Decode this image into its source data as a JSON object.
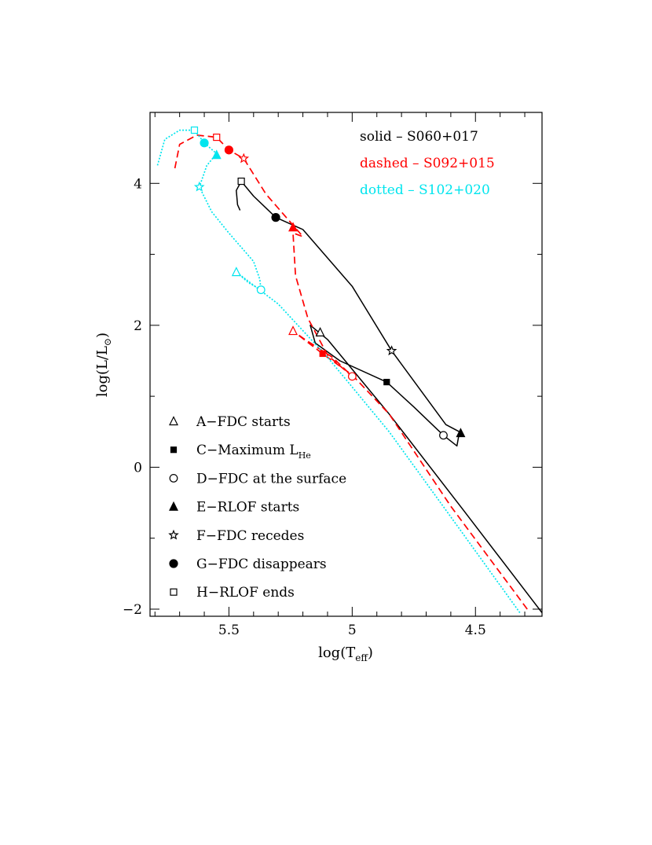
{
  "chart_data": {
    "type": "line",
    "title": "",
    "xlabel": {
      "main": "log(T",
      "sub": "eff",
      "close": ")"
    },
    "ylabel": {
      "main": "log(L/L",
      "sub": "⊙",
      "close": ")"
    },
    "xlim": [
      5.82,
      4.23
    ],
    "ylim": [
      -2.1,
      5.0
    ],
    "x_ticks": [
      {
        "value": 5.5,
        "label": "5.5"
      },
      {
        "value": 5.0,
        "label": "5"
      },
      {
        "value": 4.5,
        "label": "4.5"
      }
    ],
    "y_ticks": [
      {
        "value": 4,
        "label": "4"
      },
      {
        "value": 2,
        "label": "2"
      },
      {
        "value": 0,
        "label": "0"
      },
      {
        "value": -2,
        "label": "−2"
      }
    ],
    "x_minor_step": 0.1,
    "y_minor_step": 1.0,
    "series_legend": [
      {
        "style": "solid",
        "name": "S060+017",
        "text": "solid  –  S060+017",
        "color": "#000000"
      },
      {
        "style": "dashed",
        "name": "S092+015",
        "text": "dashed  –  S092+015",
        "color": "#ff0000"
      },
      {
        "style": "dotted",
        "name": "S102+020",
        "text": "dotted  –  S102+020",
        "color": "#00e5ee"
      }
    ],
    "series": [
      {
        "name": "S060+017",
        "style": "solid",
        "color": "#000000",
        "segments": [
          [
            [
              4.23,
              -2.05
            ],
            [
              4.55,
              -0.6
            ],
            [
              4.85,
              0.75
            ],
            [
              5.1,
              1.8
            ],
            [
              5.17,
              2.0
            ],
            [
              5.15,
              1.75
            ],
            [
              5.05,
              1.5
            ],
            [
              4.86,
              1.2
            ],
            [
              4.75,
              0.85
            ],
            [
              4.63,
              0.45
            ],
            [
              4.575,
              0.3
            ],
            [
              4.565,
              0.5
            ],
            [
              4.62,
              0.6
            ],
            [
              4.84,
              1.64
            ],
            [
              5.0,
              2.55
            ],
            [
              5.2,
              3.35
            ],
            [
              5.31,
              3.52
            ],
            [
              5.4,
              3.82
            ],
            [
              5.45,
              4.03
            ],
            [
              5.47,
              3.9
            ],
            [
              5.465,
              3.7
            ],
            [
              5.455,
              3.62
            ]
          ]
        ]
      },
      {
        "name": "S092+015",
        "style": "dashed",
        "color": "#ff0000",
        "segments": [
          [
            [
              4.29,
              -2.0
            ],
            [
              4.6,
              -0.55
            ],
            [
              4.85,
              0.75
            ],
            [
              5.0,
              1.3
            ],
            [
              5.12,
              1.6
            ],
            [
              5.24,
              1.92
            ],
            [
              5.2,
              1.82
            ],
            [
              5.08,
              1.55
            ],
            [
              5.0,
              1.28
            ],
            [
              5.1,
              1.58
            ],
            [
              5.18,
              2.1
            ],
            [
              5.23,
              2.7
            ],
            [
              5.24,
              3.3
            ],
            [
              5.2,
              3.25
            ],
            [
              5.35,
              3.85
            ],
            [
              5.44,
              4.35
            ],
            [
              5.5,
              4.47
            ],
            [
              5.55,
              4.65
            ],
            [
              5.63,
              4.68
            ],
            [
              5.7,
              4.55
            ],
            [
              5.72,
              4.2
            ]
          ]
        ]
      },
      {
        "name": "S102+020",
        "style": "dotted",
        "color": "#00e5ee",
        "segments": [
          [
            [
              4.32,
              -2.05
            ],
            [
              4.6,
              -0.7
            ],
            [
              4.85,
              0.5
            ],
            [
              5.1,
              1.55
            ],
            [
              5.3,
              2.3
            ],
            [
              5.47,
              2.75
            ],
            [
              5.42,
              2.6
            ],
            [
              5.37,
              2.5
            ],
            [
              5.375,
              2.65
            ],
            [
              5.4,
              2.9
            ],
            [
              5.5,
              3.3
            ],
            [
              5.57,
              3.6
            ],
            [
              5.62,
              3.95
            ],
            [
              5.59,
              4.25
            ],
            [
              5.55,
              4.42
            ],
            [
              5.6,
              4.57
            ],
            [
              5.64,
              4.75
            ],
            [
              5.7,
              4.75
            ],
            [
              5.76,
              4.62
            ],
            [
              5.79,
              4.25
            ]
          ]
        ]
      }
    ],
    "markers": [
      {
        "series": "S060+017",
        "symbol": "A",
        "x": 5.13,
        "y": 1.9
      },
      {
        "series": "S060+017",
        "symbol": "C",
        "x": 4.86,
        "y": 1.2
      },
      {
        "series": "S060+017",
        "symbol": "D",
        "x": 4.63,
        "y": 0.45
      },
      {
        "series": "S060+017",
        "symbol": "E",
        "x": 4.56,
        "y": 0.48
      },
      {
        "series": "S060+017",
        "symbol": "F",
        "x": 4.84,
        "y": 1.64
      },
      {
        "series": "S060+017",
        "symbol": "G",
        "x": 5.31,
        "y": 3.52
      },
      {
        "series": "S060+017",
        "symbol": "H",
        "x": 5.45,
        "y": 4.03
      },
      {
        "series": "S092+015",
        "symbol": "A",
        "x": 5.24,
        "y": 1.92
      },
      {
        "series": "S092+015",
        "symbol": "C",
        "x": 5.12,
        "y": 1.6
      },
      {
        "series": "S092+015",
        "symbol": "D",
        "x": 5.0,
        "y": 1.28
      },
      {
        "series": "S092+015",
        "symbol": "E",
        "x": 5.24,
        "y": 3.38
      },
      {
        "series": "S092+015",
        "symbol": "F",
        "x": 5.44,
        "y": 4.35
      },
      {
        "series": "S092+015",
        "symbol": "G",
        "x": 5.5,
        "y": 4.47
      },
      {
        "series": "S092+015",
        "symbol": "H",
        "x": 5.55,
        "y": 4.65
      },
      {
        "series": "S102+020",
        "symbol": "A",
        "x": 5.47,
        "y": 2.75
      },
      {
        "series": "S102+020",
        "symbol": "C",
        "x": 5.37,
        "y": 2.5
      },
      {
        "series": "S102+020",
        "symbol": "D",
        "x": 5.37,
        "y": 2.5
      },
      {
        "series": "S102+020",
        "symbol": "E",
        "x": 5.55,
        "y": 4.4
      },
      {
        "series": "S102+020",
        "symbol": "F",
        "x": 5.62,
        "y": 3.95
      },
      {
        "series": "S102+020",
        "symbol": "G",
        "x": 5.6,
        "y": 4.57
      },
      {
        "series": "S102+020",
        "symbol": "H",
        "x": 5.64,
        "y": 4.75
      }
    ],
    "symbol_legend": [
      {
        "symbol": "A",
        "shape": "open-triangle",
        "label": "A−FDC starts"
      },
      {
        "symbol": "C",
        "shape": "filled-square",
        "label": "C−Maximum L",
        "sub": "He"
      },
      {
        "symbol": "D",
        "shape": "open-circle",
        "label": "D−FDC at the surface"
      },
      {
        "symbol": "E",
        "shape": "filled-triangle",
        "label": "E−RLOF starts"
      },
      {
        "symbol": "F",
        "shape": "open-star",
        "label": "F−FDC recedes"
      },
      {
        "symbol": "G",
        "shape": "filled-circle",
        "label": "G−FDC disappears"
      },
      {
        "symbol": "H",
        "shape": "open-square",
        "label": "H−RLOF ends"
      }
    ]
  }
}
